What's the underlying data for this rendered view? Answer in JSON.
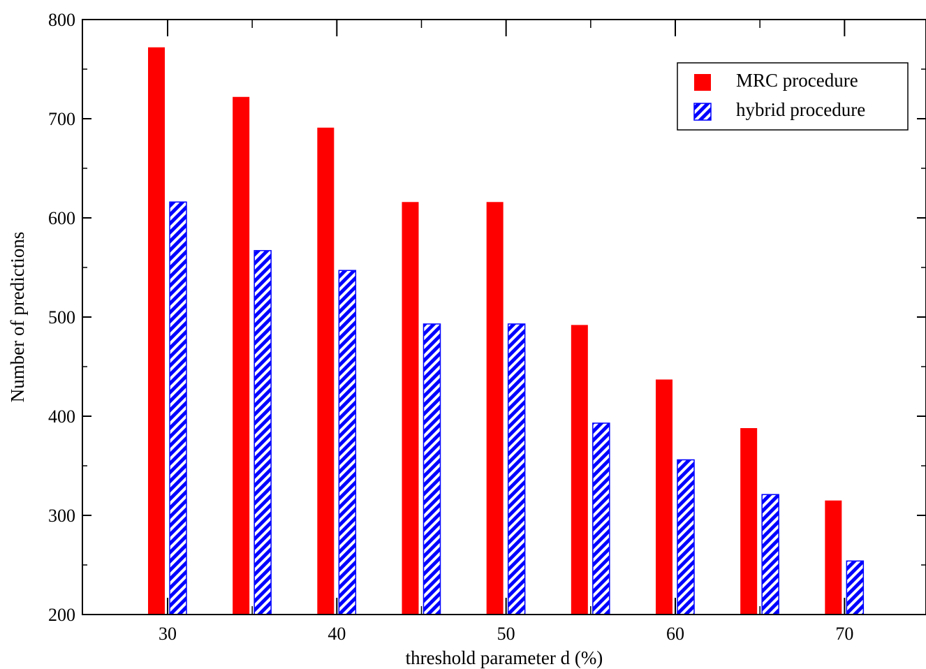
{
  "chart_data": {
    "type": "bar",
    "xlabel": "threshold parameter d (%)",
    "ylabel": "Number of predictions",
    "xlim": [
      25,
      70
    ],
    "ylim": [
      200,
      800
    ],
    "x_ticks": [
      "30",
      "40",
      "50",
      "60",
      "70"
    ],
    "x_tick_values": [
      30,
      40,
      50,
      60,
      70
    ],
    "y_ticks": [
      "200",
      "300",
      "400",
      "500",
      "600",
      "700",
      "800"
    ],
    "y_tick_values": [
      200,
      300,
      400,
      500,
      600,
      700,
      800
    ],
    "x": [
      30,
      35,
      40,
      45,
      50,
      55,
      60,
      65,
      70
    ],
    "series": [
      {
        "name": "MRC procedure",
        "values": [
          772,
          722,
          691,
          616,
          616,
          492,
          437,
          388,
          315
        ],
        "color": "#ff0000",
        "pattern": "solid"
      },
      {
        "name": "hybrid procedure",
        "values": [
          616,
          567,
          547,
          493,
          493,
          393,
          356,
          321,
          254
        ],
        "color": "#0000ff",
        "pattern": "diagonal-stripes"
      }
    ],
    "legend_position": "top-right",
    "grid": false
  }
}
